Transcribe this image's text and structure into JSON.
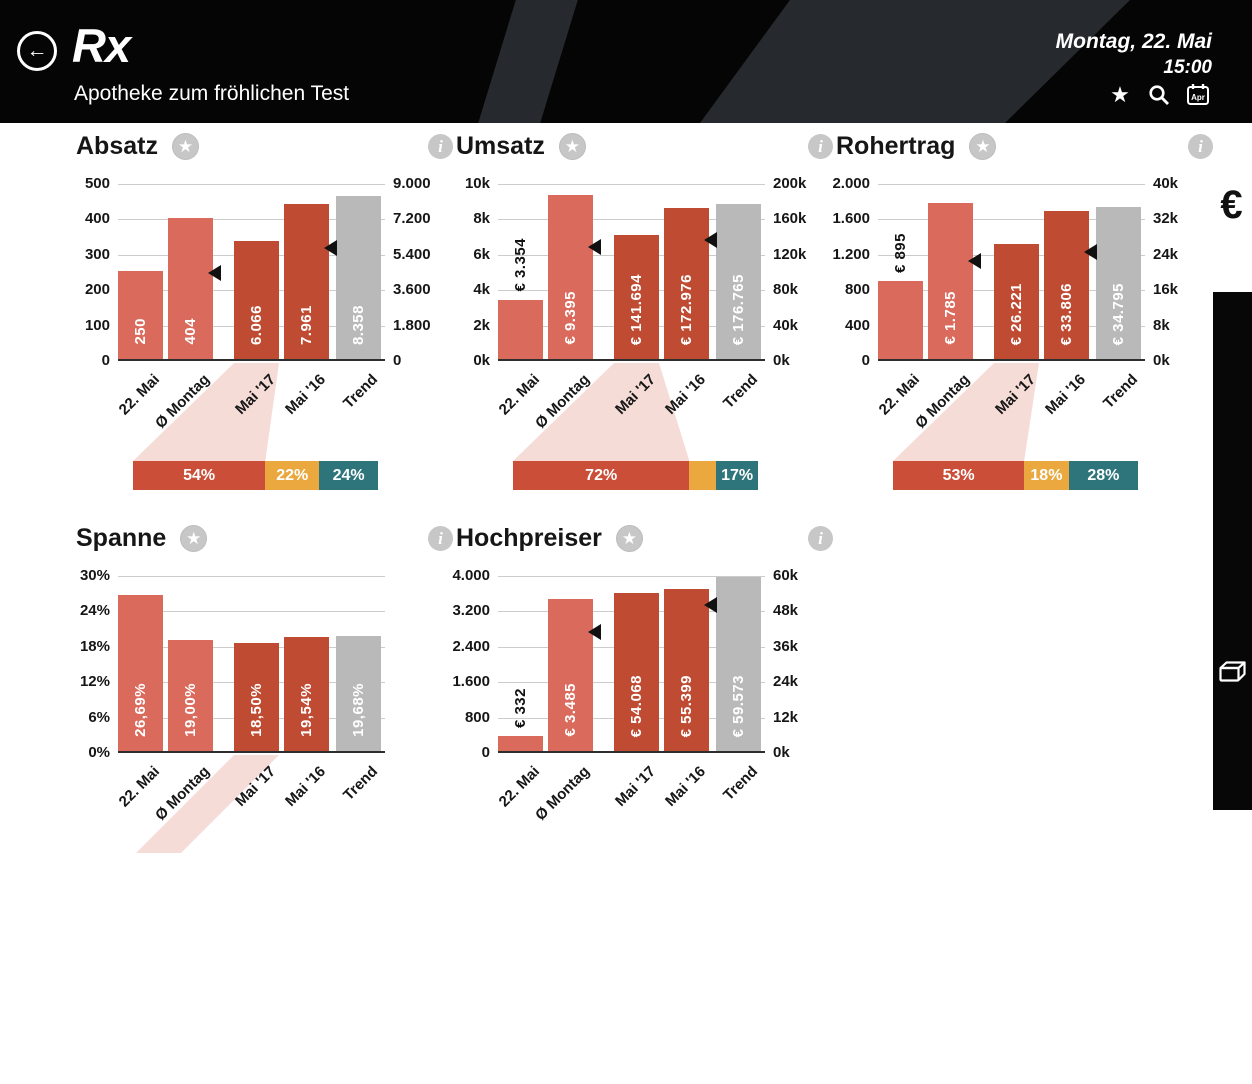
{
  "header": {
    "app_title": "Rx",
    "subtitle": "Apotheke zum fröhlichen Test",
    "date": "Montag, 22. Mai",
    "time": "15:00",
    "calendar_label": "Apr"
  },
  "sidebar": {
    "currency_symbol": "€"
  },
  "colors": {
    "salmon": "#d96a5c",
    "dark_red": "#c04b33",
    "gray_bar": "#b9b9b9",
    "pct_red": "#cb4f38",
    "pct_orange": "#eaa83e",
    "pct_teal": "#2d747b",
    "funnel_pink": "#f6dcd7"
  },
  "chart_data": [
    {
      "id": "absatz",
      "type": "bar",
      "title": "Absatz",
      "categories": [
        "22. Mai",
        "Ø Montag",
        "Mai '17",
        "Mai '16",
        "Trend"
      ],
      "ylim_left": [
        0,
        500
      ],
      "ylim_right": [
        0,
        9000
      ],
      "yticks_left": [
        "500",
        "400",
        "300",
        "200",
        "100",
        "0"
      ],
      "yticks_right": [
        "9.000",
        "7.200",
        "5.400",
        "3.600",
        "1.800",
        "0"
      ],
      "bars": [
        {
          "category": "22. Mai",
          "value": 250,
          "label": "250",
          "axis": "left",
          "color": "salmon",
          "label_inside": true
        },
        {
          "category": "Ø Montag",
          "value": 404,
          "label": "404",
          "axis": "left",
          "color": "salmon",
          "label_inside": true
        },
        {
          "category": "Mai '17",
          "value": 6066,
          "label": "6.066",
          "axis": "right",
          "color": "dark_red",
          "label_inside": true
        },
        {
          "category": "Mai '16",
          "value": 7961,
          "label": "7.961",
          "axis": "right",
          "color": "dark_red",
          "label_inside": true
        },
        {
          "category": "Trend",
          "value": 8358,
          "label": "8.358",
          "axis": "right",
          "color": "gray_bar",
          "label_inside": true
        }
      ],
      "markers": [
        {
          "bar": 1,
          "axis": "left",
          "value": 250
        },
        {
          "bar": 3,
          "axis": "right",
          "value": 5760
        }
      ],
      "funnel": "full",
      "breakdown": [
        {
          "label": "54%",
          "value": 54,
          "color": "pct_red"
        },
        {
          "label": "22%",
          "value": 22,
          "color": "pct_orange"
        },
        {
          "label": "24%",
          "value": 24,
          "color": "pct_teal"
        }
      ]
    },
    {
      "id": "umsatz",
      "type": "bar",
      "title": "Umsatz",
      "categories": [
        "22. Mai",
        "Ø Montag",
        "Mai '17",
        "Mai '16",
        "Trend"
      ],
      "ylim_left": [
        0,
        10000
      ],
      "ylim_right": [
        0,
        200000
      ],
      "yticks_left": [
        "10k",
        "8k",
        "6k",
        "4k",
        "2k",
        "0k"
      ],
      "yticks_right": [
        "200k",
        "160k",
        "120k",
        "80k",
        "40k",
        "0k"
      ],
      "bars": [
        {
          "category": "22. Mai",
          "value": 3354,
          "label": "€ 3.354",
          "axis": "left",
          "color": "salmon",
          "label_inside": false
        },
        {
          "category": "Ø Montag",
          "value": 9395,
          "label": "€ 9.395",
          "axis": "left",
          "color": "salmon",
          "label_inside": true
        },
        {
          "category": "Mai '17",
          "value": 141694,
          "label": "€ 141.694",
          "axis": "right",
          "color": "dark_red",
          "label_inside": true
        },
        {
          "category": "Mai '16",
          "value": 172976,
          "label": "€ 172.976",
          "axis": "right",
          "color": "dark_red",
          "label_inside": true
        },
        {
          "category": "Trend",
          "value": 176765,
          "label": "€ 176.765",
          "axis": "right",
          "color": "gray_bar",
          "label_inside": true
        }
      ],
      "markers": [
        {
          "bar": 1,
          "axis": "left",
          "value": 6450
        },
        {
          "bar": 3,
          "axis": "right",
          "value": 137600
        }
      ],
      "funnel": "full",
      "breakdown": [
        {
          "label": "72%",
          "value": 72,
          "color": "pct_red"
        },
        {
          "label": "",
          "value": 11,
          "color": "pct_orange"
        },
        {
          "label": "17%",
          "value": 17,
          "color": "pct_teal"
        }
      ]
    },
    {
      "id": "rohertrag",
      "type": "bar",
      "title": "Rohertrag",
      "categories": [
        "22. Mai",
        "Ø Montag",
        "Mai '17",
        "Mai '16",
        "Trend"
      ],
      "ylim_left": [
        0,
        2000
      ],
      "ylim_right": [
        0,
        40000
      ],
      "yticks_left": [
        "2.000",
        "1.600",
        "1.200",
        "800",
        "400",
        "0"
      ],
      "yticks_right": [
        "40k",
        "32k",
        "24k",
        "16k",
        "8k",
        "0k"
      ],
      "bars": [
        {
          "category": "22. Mai",
          "value": 895,
          "label": "€ 895",
          "axis": "left",
          "color": "salmon",
          "label_inside": false
        },
        {
          "category": "Ø Montag",
          "value": 1785,
          "label": "€ 1.785",
          "axis": "left",
          "color": "salmon",
          "label_inside": true
        },
        {
          "category": "Mai '17",
          "value": 26221,
          "label": "€ 26.221",
          "axis": "right",
          "color": "dark_red",
          "label_inside": true
        },
        {
          "category": "Mai '16",
          "value": 33806,
          "label": "€ 33.806",
          "axis": "right",
          "color": "dark_red",
          "label_inside": true
        },
        {
          "category": "Trend",
          "value": 34795,
          "label": "€ 34.795",
          "axis": "right",
          "color": "gray_bar",
          "label_inside": true
        }
      ],
      "markers": [
        {
          "bar": 1,
          "axis": "left",
          "value": 1136
        },
        {
          "bar": 3,
          "axis": "right",
          "value": 24600
        }
      ],
      "funnel": "full",
      "breakdown": [
        {
          "label": "53%",
          "value": 53,
          "color": "pct_red"
        },
        {
          "label": "18%",
          "value": 18,
          "color": "pct_orange"
        },
        {
          "label": "28%",
          "value": 28,
          "color": "pct_teal"
        }
      ]
    },
    {
      "id": "spanne",
      "type": "bar",
      "title": "Spanne",
      "categories": [
        "22. Mai",
        "Ø Montag",
        "Mai '17",
        "Mai '16",
        "Trend"
      ],
      "ylim_left": [
        0,
        30
      ],
      "ylim_right": null,
      "yticks_left": [
        "30%",
        "24%",
        "18%",
        "12%",
        "6%",
        "0%"
      ],
      "yticks_right": null,
      "bars": [
        {
          "category": "22. Mai",
          "value": 26.69,
          "label": "26,69%",
          "axis": "left",
          "color": "salmon",
          "label_inside": true
        },
        {
          "category": "Ø Montag",
          "value": 19.0,
          "label": "19,00%",
          "axis": "left",
          "color": "salmon",
          "label_inside": true
        },
        {
          "category": "Mai '17",
          "value": 18.5,
          "label": "18,50%",
          "axis": "left",
          "color": "dark_red",
          "label_inside": true
        },
        {
          "category": "Mai '16",
          "value": 19.54,
          "label": "19,54%",
          "axis": "left",
          "color": "dark_red",
          "label_inside": true
        },
        {
          "category": "Trend",
          "value": 19.68,
          "label": "19,68%",
          "axis": "left",
          "color": "gray_bar",
          "label_inside": true
        }
      ],
      "markers": [],
      "funnel": "stub",
      "breakdown": null
    },
    {
      "id": "hochpreiser",
      "type": "bar",
      "title": "Hochpreiser",
      "categories": [
        "22. Mai",
        "Ø Montag",
        "Mai '17",
        "Mai '16",
        "Trend"
      ],
      "ylim_left": [
        0,
        4000
      ],
      "ylim_right": [
        0,
        60000
      ],
      "yticks_left": [
        "4.000",
        "3.200",
        "2.400",
        "1.600",
        "800",
        "0"
      ],
      "yticks_right": [
        "60k",
        "48k",
        "36k",
        "24k",
        "12k",
        "0k"
      ],
      "bars": [
        {
          "category": "22. Mai",
          "value": 332,
          "label": "€ 332",
          "axis": "left",
          "color": "salmon",
          "label_inside": false
        },
        {
          "category": "Ø Montag",
          "value": 3485,
          "label": "€ 3.485",
          "axis": "left",
          "color": "salmon",
          "label_inside": true
        },
        {
          "category": "Mai '17",
          "value": 54068,
          "label": "€ 54.068",
          "axis": "right",
          "color": "dark_red",
          "label_inside": true
        },
        {
          "category": "Mai '16",
          "value": 55399,
          "label": "€ 55.399",
          "axis": "right",
          "color": "dark_red",
          "label_inside": true
        },
        {
          "category": "Trend",
          "value": 59573,
          "label": "€ 59.573",
          "axis": "right",
          "color": "gray_bar",
          "label_inside": true
        }
      ],
      "markers": [
        {
          "bar": 1,
          "axis": "left",
          "value": 2735
        },
        {
          "bar": 3,
          "axis": "right",
          "value": 50450
        }
      ],
      "funnel": "none",
      "breakdown": null
    }
  ]
}
